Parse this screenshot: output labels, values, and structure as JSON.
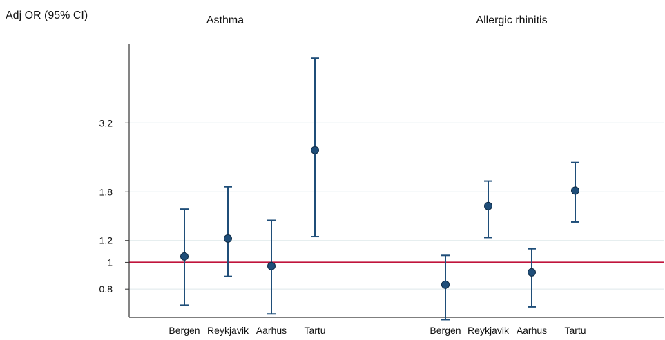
{
  "chart_data": {
    "type": "scatter",
    "subtype": "forest-plot-with-error-bars",
    "ylabel": "Adj OR (95% CI)",
    "y_scale": "log",
    "y_ticks": [
      "0.8",
      "1",
      "1.2",
      "1.8",
      "3.2"
    ],
    "y_tick_values": [
      0.8,
      1,
      1.2,
      1.8,
      3.2
    ],
    "ylim": [
      0.67,
      5.9
    ],
    "reference_line": 1,
    "grid": "horizontal",
    "colors": {
      "marker": "#1f4e79",
      "error_bar": "#1f4e79",
      "reference_line": "#c0143c",
      "grid": "#dde8ea",
      "axis": "#333333"
    },
    "panels": [
      {
        "title": "Asthma",
        "categories": [
          "Bergen",
          "Reykjavik",
          "Aarhus",
          "Tartu"
        ],
        "or": [
          1.05,
          1.22,
          0.97,
          2.55
        ],
        "lower": [
          0.7,
          0.89,
          0.65,
          1.24
        ],
        "upper": [
          1.56,
          1.88,
          1.42,
          5.5
        ]
      },
      {
        "title": "Allergic rhinitis",
        "categories": [
          "Bergen",
          "Reykjavik",
          "Aarhus",
          "Tartu"
        ],
        "or": [
          0.83,
          1.6,
          0.92,
          1.82
        ],
        "lower": [
          0.62,
          1.23,
          0.69,
          1.4
        ],
        "upper": [
          1.06,
          1.97,
          1.12,
          2.3
        ]
      }
    ]
  }
}
